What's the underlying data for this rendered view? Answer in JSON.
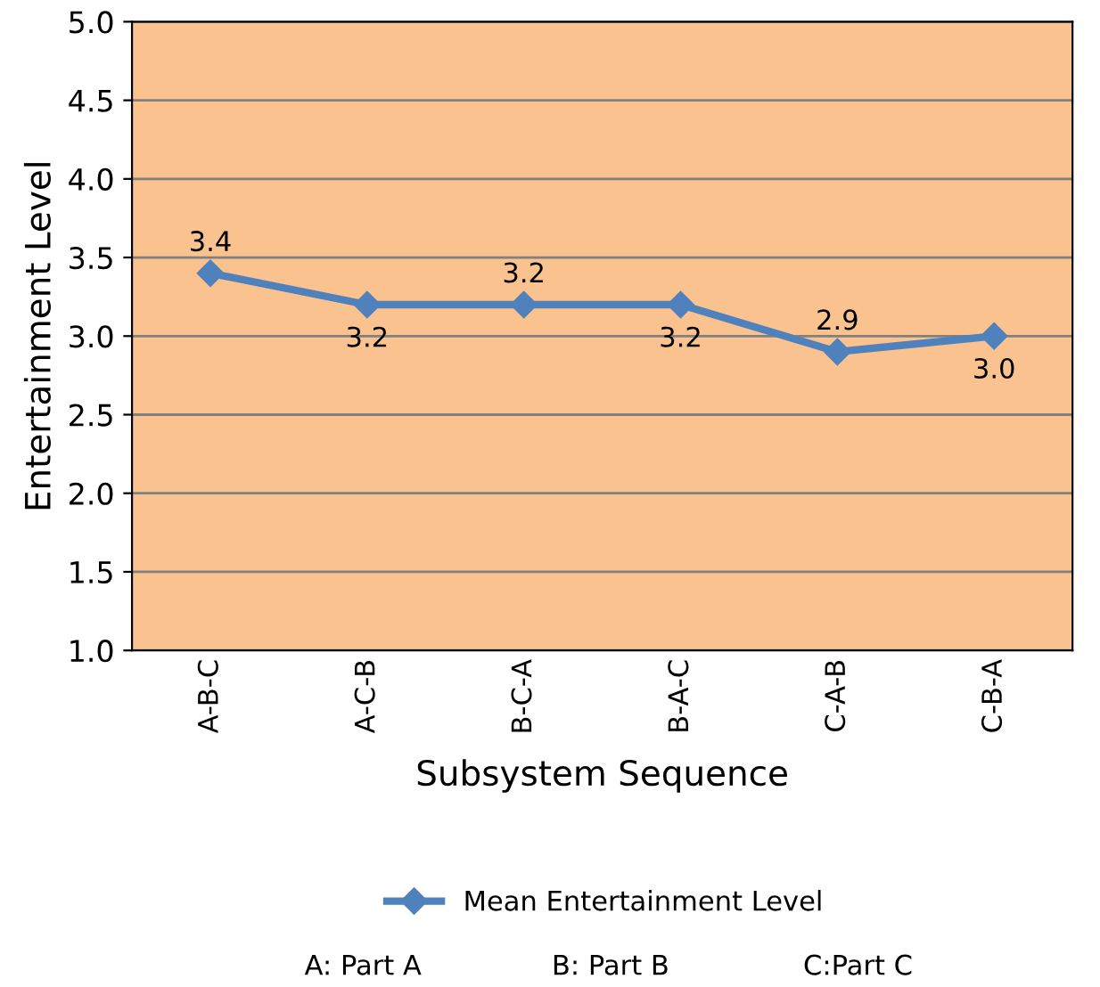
{
  "chart_data": {
    "type": "line",
    "xlabel": "Subsystem Sequence",
    "ylabel": "Entertainment Level",
    "categories": [
      "A-B-C",
      "A-C-B",
      "B-C-A",
      "B-A-C",
      "C-A-B",
      "C-B-A"
    ],
    "series": [
      {
        "name": "Mean Entertainment Level",
        "color": "#4f81bd",
        "values": [
          3.4,
          3.2,
          3.2,
          3.2,
          2.9,
          3.0
        ],
        "value_labels": [
          "3.4",
          "3.2",
          "3.2",
          "3.2",
          "2.9",
          "3.0"
        ]
      }
    ],
    "ylim": [
      1,
      5
    ],
    "yticks": [
      {
        "value": 1,
        "label": "1.0"
      },
      {
        "value": 1.5,
        "label": "1.5"
      },
      {
        "value": 2,
        "label": "2.0"
      },
      {
        "value": 2.5,
        "label": "2.5"
      },
      {
        "value": 3,
        "label": "3.0"
      },
      {
        "value": 3.5,
        "label": "3.5"
      },
      {
        "value": 4,
        "label": "4.0"
      },
      {
        "value": 4.5,
        "label": "4.5"
      },
      {
        "value": 5,
        "label": "5.0"
      }
    ],
    "grid": "y",
    "legend": "bottom",
    "marker": "diamond",
    "line_style": "solid",
    "annotations": [
      "A: Part A",
      "B: Part B",
      "C:Part C"
    ]
  }
}
